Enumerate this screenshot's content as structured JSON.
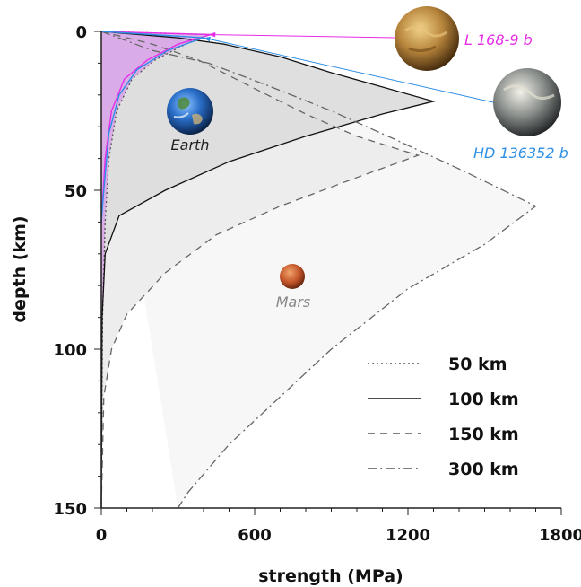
{
  "chart_data": {
    "type": "line",
    "xlabel": "strength (MPa)",
    "ylabel": "depth (km)",
    "xlim": [
      0,
      1800
    ],
    "ylim": [
      0,
      150
    ],
    "y_inverted": true,
    "x_ticks": [
      0,
      600,
      1200,
      1800
    ],
    "y_ticks": [
      0,
      50,
      100,
      150
    ],
    "legend_position": "bottom-right",
    "series": [
      {
        "name": "50 km",
        "style": "dotted",
        "color": "#555555",
        "fill": "#d9a6e8",
        "points": [
          [
            0,
            0
          ],
          [
            420,
            1
          ],
          [
            330,
            4
          ],
          [
            210,
            9
          ],
          [
            120,
            15
          ],
          [
            60,
            25
          ],
          [
            30,
            40
          ],
          [
            15,
            60
          ],
          [
            5,
            90
          ],
          [
            0,
            150
          ]
        ]
      },
      {
        "name": "100 km",
        "style": "solid",
        "color": "#111111",
        "fill": "#dcdcdc",
        "points": [
          [
            0,
            0
          ],
          [
            300,
            2
          ],
          [
            480,
            4
          ],
          [
            700,
            8
          ],
          [
            900,
            13
          ],
          [
            1300,
            22
          ],
          [
            1100,
            26
          ],
          [
            800,
            33
          ],
          [
            500,
            41
          ],
          [
            250,
            50
          ],
          [
            70,
            58
          ],
          [
            15,
            70
          ],
          [
            3,
            90
          ],
          [
            0,
            150
          ]
        ]
      },
      {
        "name": "150 km",
        "style": "dashed",
        "color": "#666666",
        "fill": "#ebebeb",
        "points": [
          [
            0,
            0
          ],
          [
            200,
            4
          ],
          [
            380,
            9
          ],
          [
            600,
            18
          ],
          [
            800,
            26
          ],
          [
            1000,
            33
          ],
          [
            1240,
            39
          ],
          [
            1000,
            46
          ],
          [
            700,
            55
          ],
          [
            450,
            64
          ],
          [
            250,
            76
          ],
          [
            100,
            89
          ],
          [
            40,
            100
          ],
          [
            10,
            115
          ],
          [
            0,
            150
          ]
        ]
      },
      {
        "name": "300 km",
        "style": "dashdot",
        "color": "#666666",
        "fill": "#f6f6f6",
        "points": [
          [
            0,
            0
          ],
          [
            200,
            6
          ],
          [
            420,
            10
          ],
          [
            650,
            17
          ],
          [
            900,
            25
          ],
          [
            1150,
            34
          ],
          [
            1420,
            44
          ],
          [
            1700,
            55
          ],
          [
            1500,
            67
          ],
          [
            1200,
            81
          ],
          [
            900,
            100
          ],
          [
            700,
            115
          ],
          [
            500,
            130
          ],
          [
            340,
            145
          ],
          [
            300,
            150
          ]
        ]
      }
    ],
    "annotations": [
      {
        "label": "Earth",
        "color": "#222222",
        "icon": "earth-image",
        "x": 370,
        "y": 25
      },
      {
        "label": "Mars",
        "color": "#888888",
        "icon": "mars-image",
        "x": 750,
        "y": 77
      },
      {
        "label": "L 168-9 b",
        "color": "#e62ee6",
        "icon": "planet-l168-image",
        "x": 420,
        "y": 1
      },
      {
        "label": "HD 136352 b",
        "color": "#2e8fe6",
        "icon": "planet-hd136352-image",
        "x": 400,
        "y": 2
      }
    ],
    "profiles": [
      {
        "name": "L 168-9 b",
        "color": "#e62ee6",
        "points": [
          [
            0,
            0
          ],
          [
            430,
            1
          ],
          [
            300,
            4
          ],
          [
            180,
            9
          ],
          [
            90,
            15
          ],
          [
            40,
            25
          ],
          [
            15,
            40
          ],
          [
            0,
            60
          ]
        ]
      },
      {
        "name": "HD 136352 b",
        "color": "#2e8fe6",
        "points": [
          [
            0,
            0
          ],
          [
            400,
            2
          ],
          [
            260,
            6
          ],
          [
            140,
            12
          ],
          [
            70,
            20
          ],
          [
            30,
            32
          ],
          [
            10,
            50
          ],
          [
            0,
            60
          ]
        ]
      }
    ]
  }
}
